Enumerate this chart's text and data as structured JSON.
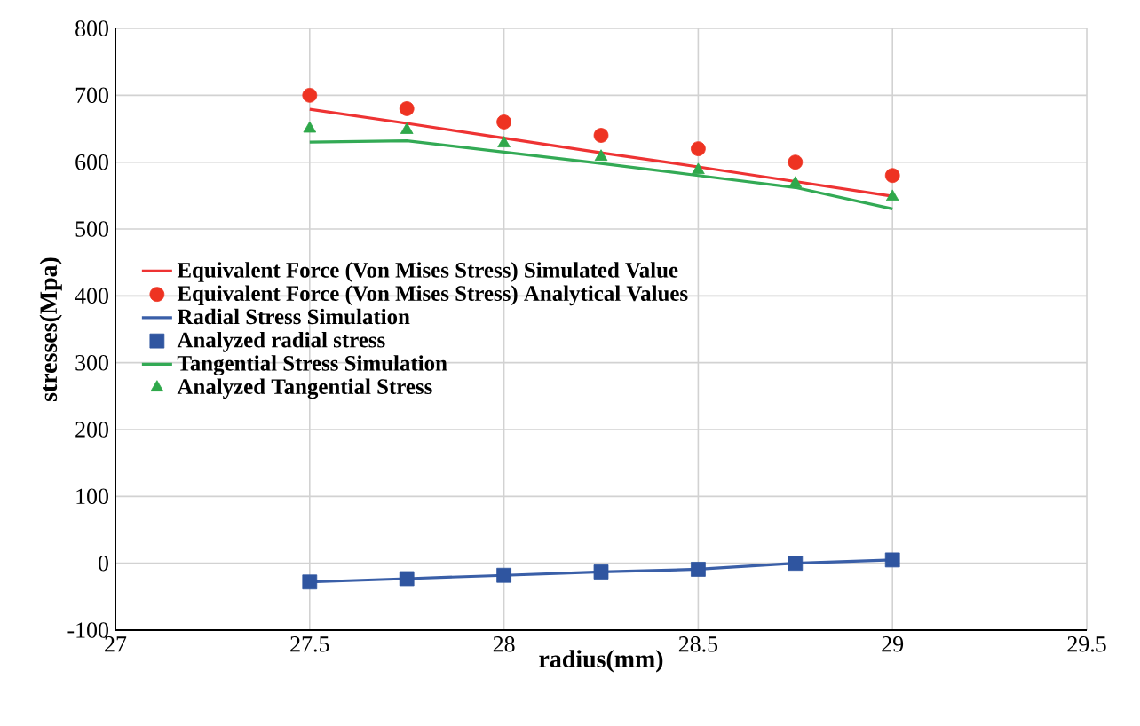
{
  "chart_data": {
    "type": "line",
    "xlabel": "radius(mm)",
    "ylabel": "stresses(Mpa)",
    "xlim": [
      27,
      29.5
    ],
    "xticks": [
      27,
      27.5,
      28,
      28.5,
      29,
      29.5
    ],
    "ylim": [
      -100,
      800
    ],
    "yticks": [
      -100,
      0,
      100,
      200,
      300,
      400,
      500,
      600,
      700,
      800
    ],
    "grid": true,
    "legend": "left",
    "x": [
      27.5,
      27.75,
      28,
      28.25,
      28.5,
      28.75,
      29
    ],
    "series": [
      {
        "name": "Equivalent Force (Von Mises Stress) Simulated Value",
        "marker": "none",
        "color": "#ee3333",
        "values": [
          679,
          658,
          636,
          614,
          593,
          571,
          549
        ]
      },
      {
        "name": "Equivalent Force (Von Mises Stress) Analytical Values",
        "type": "scatter",
        "marker": "circle",
        "color": "#ee3322",
        "values": [
          700,
          680,
          660,
          640,
          620,
          600,
          580
        ]
      },
      {
        "name": "Radial Stress Simulation",
        "marker": "none",
        "color": "#3a5fa8",
        "values": [
          -28,
          -23,
          -18,
          -13,
          -9,
          0,
          5
        ]
      },
      {
        "name": "Analyzed radial stress",
        "type": "scatter",
        "marker": "square",
        "color": "#2f55a0",
        "values": [
          -28,
          -23,
          -18,
          -13,
          -9,
          0,
          5
        ]
      },
      {
        "name": "Tangential Stress Simulation",
        "marker": "none",
        "color": "#33aa55",
        "values": [
          630,
          632,
          615,
          598,
          580,
          562,
          530
        ]
      },
      {
        "name": "Analyzed Tangential Stress",
        "type": "scatter",
        "marker": "triangle",
        "color": "#2fa84a",
        "values": [
          650,
          648,
          628,
          608,
          588,
          568,
          548
        ]
      }
    ]
  }
}
